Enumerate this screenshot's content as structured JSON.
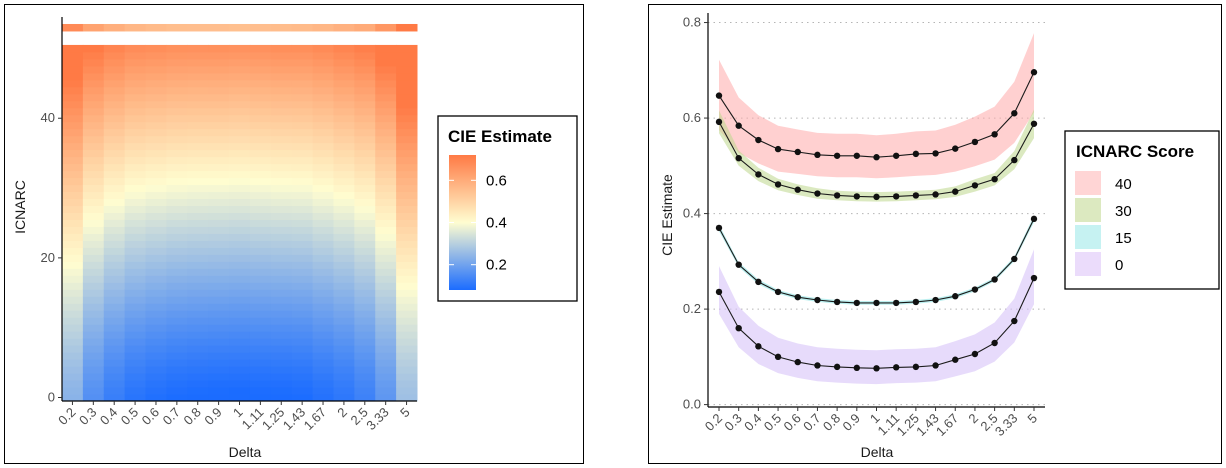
{
  "chart_data": [
    {
      "type": "heatmap",
      "xlabel": "Delta",
      "ylabel": "ICNARC",
      "x_categories": [
        "0.2",
        "0.3",
        "0.4",
        "0.5",
        "0.6",
        "0.7",
        "0.8",
        "0.9",
        "1",
        "1.11",
        "1.25",
        "1.43",
        "1.67",
        "2",
        "2.5",
        "3.33",
        "5"
      ],
      "y_range": [
        0,
        50
      ],
      "y_extra_band": 53,
      "yticks": [
        0,
        20,
        40
      ],
      "ylim": [
        -0.5,
        54.5
      ],
      "legend": {
        "title": "CIE Estimate",
        "ticks": [
          0.2,
          0.4,
          0.6
        ],
        "range": [
          0.08,
          0.72
        ],
        "placement": "right",
        "colors": {
          "low": "#1b6cff",
          "mid": "#fffdd0",
          "high": "#ff7a45"
        }
      },
      "base_curve": [
        0.236,
        0.16,
        0.122,
        0.1,
        0.089,
        0.082,
        0.079,
        0.077,
        0.076,
        0.078,
        0.079,
        0.082,
        0.094,
        0.106,
        0.129,
        0.175,
        0.265
      ],
      "top_curve": [
        0.647,
        0.584,
        0.554,
        0.535,
        0.529,
        0.523,
        0.521,
        0.521,
        0.518,
        0.521,
        0.525,
        0.526,
        0.536,
        0.55,
        0.566,
        0.61,
        0.696
      ],
      "top_band_curve": [
        0.68,
        0.62,
        0.59,
        0.57,
        0.56,
        0.555,
        0.553,
        0.553,
        0.55,
        0.553,
        0.557,
        0.56,
        0.57,
        0.585,
        0.6,
        0.65,
        0.74
      ]
    },
    {
      "type": "line",
      "xlabel": "Delta",
      "ylabel": "CIE Estimate",
      "categories": [
        "0.2",
        "0.3",
        "0.4",
        "0.5",
        "0.6",
        "0.7",
        "0.8",
        "0.9",
        "1",
        "1.11",
        "1.25",
        "1.43",
        "1.67",
        "2",
        "2.5",
        "3.33",
        "5"
      ],
      "ylim": [
        0,
        0.8
      ],
      "yticks": [
        0.0,
        0.2,
        0.4,
        0.6,
        0.8
      ],
      "ytick_labels": [
        "0.0",
        "0.2",
        "0.4",
        "0.6",
        "0.8"
      ],
      "grid": "horizontal dotted",
      "legend": {
        "title": "ICNARC Score",
        "placement": "right"
      },
      "series": [
        {
          "name": "40",
          "color": "#ffcfcf",
          "values": [
            0.647,
            0.584,
            0.554,
            0.535,
            0.529,
            0.523,
            0.521,
            0.521,
            0.518,
            0.521,
            0.525,
            0.526,
            0.536,
            0.55,
            0.566,
            0.61,
            0.696
          ],
          "lower": [
            0.575,
            0.527,
            0.505,
            0.488,
            0.483,
            0.478,
            0.476,
            0.476,
            0.474,
            0.476,
            0.479,
            0.481,
            0.488,
            0.499,
            0.513,
            0.548,
            0.612
          ],
          "upper": [
            0.722,
            0.643,
            0.606,
            0.584,
            0.576,
            0.569,
            0.567,
            0.567,
            0.564,
            0.567,
            0.572,
            0.574,
            0.586,
            0.603,
            0.624,
            0.676,
            0.778
          ]
        },
        {
          "name": "30",
          "color": "#d8e8b8",
          "values": [
            0.592,
            0.516,
            0.482,
            0.461,
            0.45,
            0.442,
            0.438,
            0.436,
            0.435,
            0.436,
            0.438,
            0.44,
            0.446,
            0.459,
            0.472,
            0.512,
            0.588
          ],
          "lower": [
            0.568,
            0.5,
            0.468,
            0.449,
            0.439,
            0.431,
            0.428,
            0.426,
            0.425,
            0.426,
            0.428,
            0.43,
            0.435,
            0.446,
            0.459,
            0.493,
            0.558
          ],
          "upper": [
            0.616,
            0.532,
            0.496,
            0.473,
            0.461,
            0.453,
            0.448,
            0.446,
            0.445,
            0.446,
            0.448,
            0.45,
            0.457,
            0.472,
            0.485,
            0.531,
            0.618
          ]
        },
        {
          "name": "15",
          "color": "#bff0f0",
          "values": [
            0.37,
            0.293,
            0.257,
            0.236,
            0.225,
            0.219,
            0.215,
            0.213,
            0.213,
            0.213,
            0.215,
            0.219,
            0.227,
            0.241,
            0.262,
            0.305,
            0.389
          ],
          "lower": [
            0.363,
            0.288,
            0.252,
            0.232,
            0.221,
            0.215,
            0.211,
            0.209,
            0.209,
            0.209,
            0.211,
            0.215,
            0.223,
            0.237,
            0.258,
            0.3,
            0.382
          ],
          "upper": [
            0.377,
            0.298,
            0.262,
            0.24,
            0.229,
            0.223,
            0.219,
            0.217,
            0.217,
            0.217,
            0.219,
            0.223,
            0.231,
            0.245,
            0.266,
            0.31,
            0.396
          ]
        },
        {
          "name": "0",
          "color": "#e6d8fa",
          "values": [
            0.236,
            0.16,
            0.122,
            0.1,
            0.089,
            0.082,
            0.079,
            0.077,
            0.076,
            0.078,
            0.079,
            0.082,
            0.094,
            0.106,
            0.129,
            0.175,
            0.265
          ],
          "lower": [
            0.19,
            0.12,
            0.085,
            0.066,
            0.056,
            0.049,
            0.046,
            0.044,
            0.043,
            0.045,
            0.046,
            0.049,
            0.059,
            0.07,
            0.09,
            0.13,
            0.21
          ],
          "upper": [
            0.29,
            0.205,
            0.165,
            0.14,
            0.128,
            0.12,
            0.117,
            0.115,
            0.114,
            0.116,
            0.117,
            0.12,
            0.133,
            0.147,
            0.172,
            0.222,
            0.325
          ]
        }
      ]
    }
  ]
}
